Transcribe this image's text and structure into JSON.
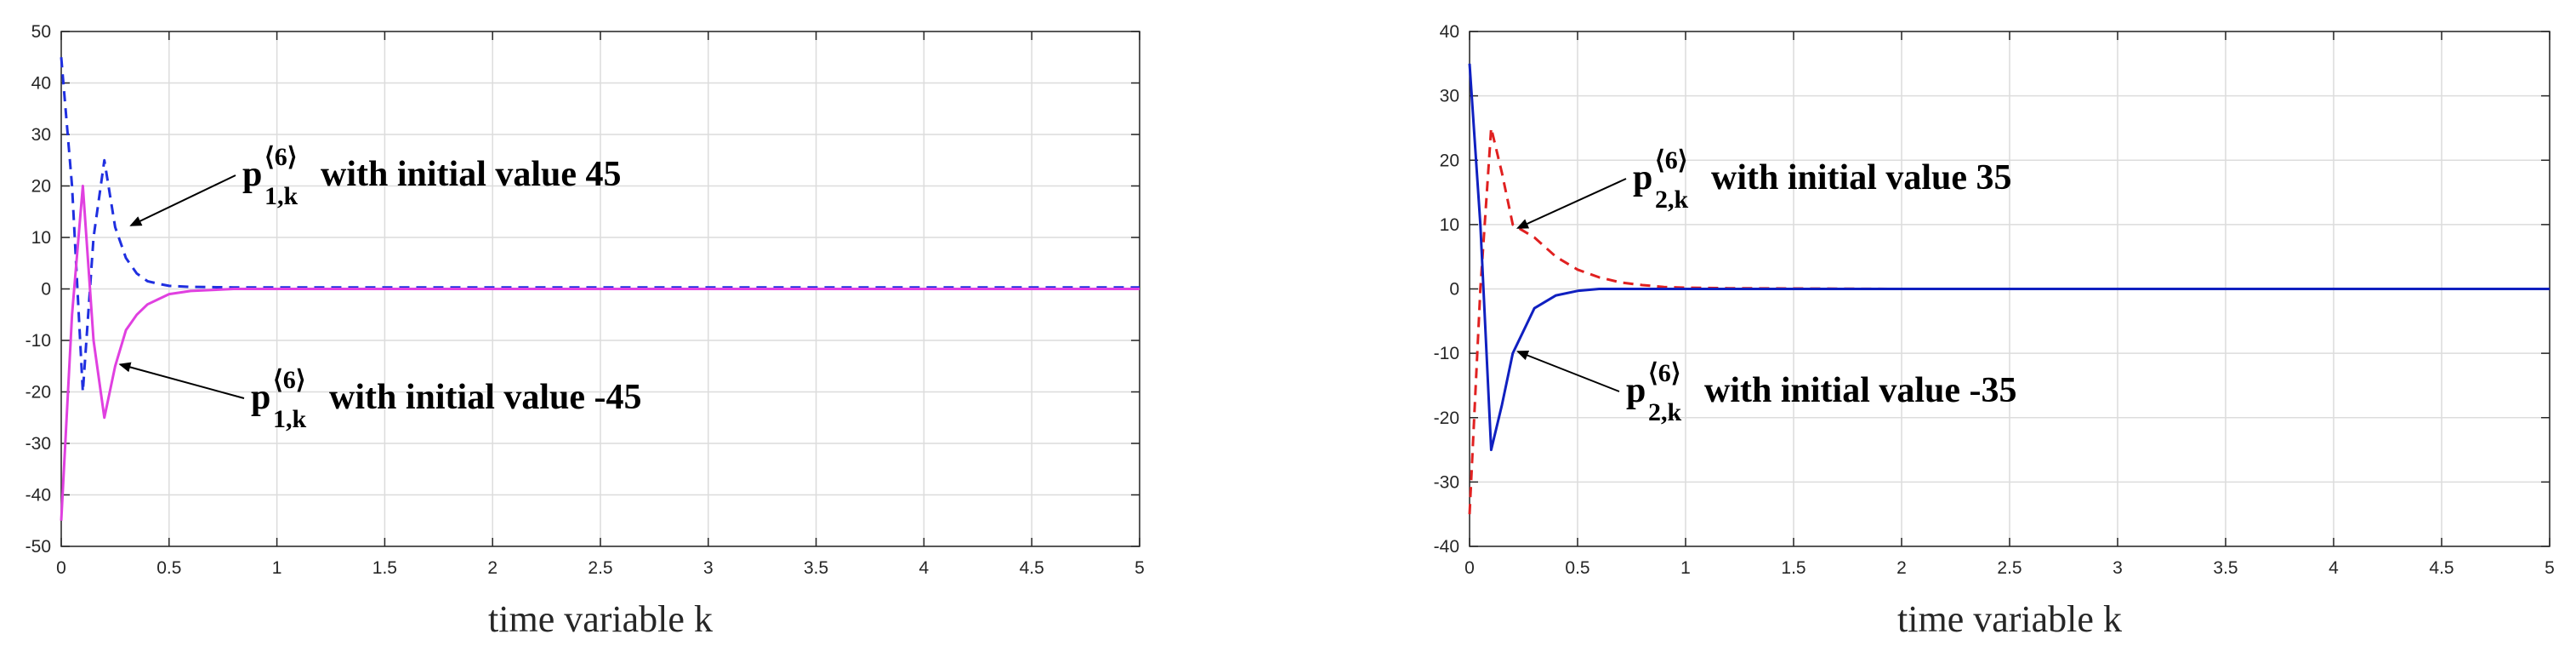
{
  "chart_data": [
    {
      "type": "line",
      "xlabel": "time variable k",
      "ylabel": "",
      "xlim": [
        0,
        5
      ],
      "ylim": [
        -50,
        50
      ],
      "xticks": [
        "0",
        "0.5",
        "1",
        "1.5",
        "2",
        "2.5",
        "3",
        "3.5",
        "4",
        "4.5",
        "5"
      ],
      "yticks": [
        "50",
        "40",
        "30",
        "20",
        "10",
        "0",
        "-10",
        "-20",
        "-30",
        "-40",
        "-50"
      ],
      "grid": true,
      "series": [
        {
          "color": "#1f2fe0",
          "style": "dashed",
          "x": [
            0,
            0.05,
            0.1,
            0.15,
            0.2,
            0.25,
            0.3,
            0.35,
            0.4,
            0.45,
            0.5,
            0.6,
            0.8,
            1.0,
            2.0,
            5.0
          ],
          "y": [
            45,
            20,
            -20,
            10,
            25,
            12,
            6,
            3,
            1.5,
            1,
            0.6,
            0.4,
            0.3,
            0.3,
            0.3,
            0.3
          ]
        },
        {
          "color": "#e040e0",
          "style": "solid",
          "x": [
            0,
            0.05,
            0.1,
            0.15,
            0.2,
            0.25,
            0.3,
            0.35,
            0.4,
            0.45,
            0.5,
            0.6,
            0.8,
            1.0,
            2.0,
            5.0
          ],
          "y": [
            -45,
            -5,
            20,
            -10,
            -25,
            -15,
            -8,
            -5,
            -3,
            -2,
            -1,
            -0.4,
            0,
            0,
            0,
            0
          ]
        }
      ],
      "annotations": [
        {
          "base": "p",
          "sup": "⟨6⟩",
          "sub": "1,k",
          "text": "with initial value 45",
          "target_x": 0.3,
          "target_y": 13
        },
        {
          "base": "p",
          "sup": "⟨6⟩",
          "sub": "1,k",
          "text": "with initial value -45",
          "target_x": 0.25,
          "target_y": -15
        }
      ]
    },
    {
      "type": "line",
      "xlabel": "time variable k",
      "ylabel": "",
      "xlim": [
        0,
        5
      ],
      "ylim": [
        -40,
        40
      ],
      "xticks": [
        "0",
        "0.5",
        "1",
        "1.5",
        "2",
        "2.5",
        "3",
        "3.5",
        "4",
        "4.5",
        "5"
      ],
      "yticks": [
        "40",
        "30",
        "20",
        "10",
        "0",
        "-10",
        "-20",
        "-30",
        "-40"
      ],
      "grid": true,
      "series": [
        {
          "color": "#e02020",
          "style": "dashed",
          "x": [
            0,
            0.05,
            0.1,
            0.15,
            0.2,
            0.3,
            0.4,
            0.5,
            0.6,
            0.7,
            0.8,
            0.9,
            1.0,
            1.2,
            2.0,
            5.0
          ],
          "y": [
            -35,
            0,
            25,
            18,
            10,
            8,
            5,
            3,
            1.8,
            1,
            0.6,
            0.3,
            0.2,
            0.1,
            0,
            0
          ]
        },
        {
          "color": "#1020c0",
          "style": "solid",
          "x": [
            0,
            0.05,
            0.1,
            0.15,
            0.2,
            0.3,
            0.4,
            0.5,
            0.6,
            0.8,
            1.0,
            2.0,
            5.0
          ],
          "y": [
            35,
            10,
            -25,
            -18,
            -10,
            -3,
            -1,
            -0.3,
            0,
            0,
            0,
            0,
            0
          ]
        }
      ],
      "annotations": [
        {
          "base": "p",
          "sup": "⟨6⟩",
          "sub": "2,k",
          "text": "with initial value 35",
          "target_x": 0.2,
          "target_y": 10
        },
        {
          "base": "p",
          "sup": "⟨6⟩",
          "sub": "2,k",
          "text": "with initial value -35",
          "target_x": 0.2,
          "target_y": -10
        }
      ]
    }
  ]
}
